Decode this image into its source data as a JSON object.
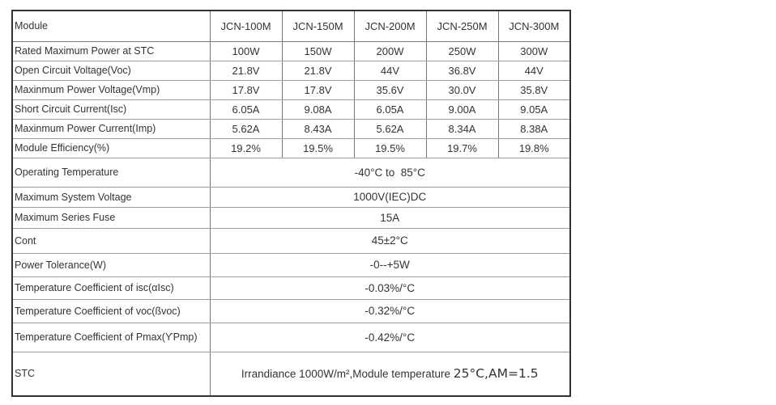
{
  "colors": {
    "background": "#ffffff",
    "text": "#333333",
    "outer_border": "#333333",
    "grid_line_horizontal": "#9c9c9c",
    "grid_line_vertical": "#757575"
  },
  "table": {
    "header": {
      "module_label": "Module",
      "columns": [
        "JCN-100M",
        "JCN-150M",
        "JCN-200M",
        "JCN-250M",
        "JCN-300M"
      ]
    },
    "spec_rows": [
      {
        "label": "Rated Maximum Power at STC",
        "values": [
          "100W",
          "150W",
          "200W",
          "250W",
          "300W"
        ]
      },
      {
        "label": "Open Circuit Voltage(Voc)",
        "values": [
          "21.8V",
          "21.8V",
          "44V",
          "36.8V",
          "44V"
        ]
      },
      {
        "label": "Maxinmum Power Voltage(Vmp)",
        "values": [
          "17.8V",
          "17.8V",
          "35.6V",
          "30.0V",
          "35.8V"
        ]
      },
      {
        "label": "Short Circuit Current(Isc)",
        "values": [
          "6.05A",
          "9.08A",
          "6.05A",
          "9.00A",
          "9.05A"
        ]
      },
      {
        "label": "Maxinmum Power Current(Imp)",
        "values": [
          "5.62A",
          "8.43A",
          "5.62A",
          "8.34A",
          "8.38A"
        ]
      },
      {
        "label": "Module Efficiency(%)",
        "values": [
          "19.2%",
          "19.5%",
          "19.5%",
          "19.7%",
          "19.8%"
        ]
      }
    ],
    "merged_rows": [
      {
        "label": "Operating Temperature",
        "value": "-40°C to  85°C"
      },
      {
        "label": "Maximum System Voltage",
        "value": "1000V(IEC)DC"
      },
      {
        "label": "Maximum Series Fuse",
        "value": "15A"
      },
      {
        "label": "Cont",
        "value": "45±2°C"
      },
      {
        "label": "Power Tolerance(W)",
        "value": "-0--+5W"
      },
      {
        "label": "Temperature Coefficient of isc(αIsc)",
        "value": "-0.03%/°C"
      },
      {
        "label": "Temperature Coefficient of voc(ßvoc)",
        "value": "-0.32%/°C"
      },
      {
        "label": "Temperature Coefficient of Pmax(ϒPmp)",
        "value": "-0.42%/°C"
      }
    ],
    "stc_row": {
      "label": "STC",
      "value": "Irrandiance 1000W/m²,Module temperature ",
      "value_suffix": "25°C,AM=1.5"
    }
  }
}
